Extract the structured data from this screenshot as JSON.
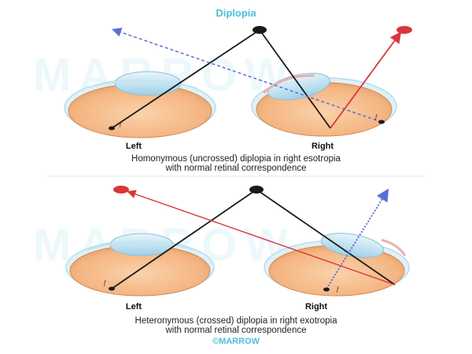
{
  "title": "Diplopia",
  "watermark": "MARROW",
  "brand": "©MARROW",
  "top_panel": {
    "left_label": "Left",
    "right_label": "Right",
    "fovea_label": "f",
    "caption_line1": "Homonymous (uncrossed) diplopia in right esotropia",
    "caption_line2": "with normal retinal correspondence"
  },
  "bottom_panel": {
    "left_label": "Left",
    "right_label": "Right",
    "fovea_label": "f",
    "caption_line1": "Heteronymous (crossed) diplopia in right exotropia",
    "caption_line2": "with normal retinal correspondence"
  },
  "colors": {
    "object": "#1a1a1a",
    "image": "#d9363e",
    "projection": "#5a6fd6",
    "accent": "#4dbfd6",
    "eye_fill": "#f4b582"
  }
}
